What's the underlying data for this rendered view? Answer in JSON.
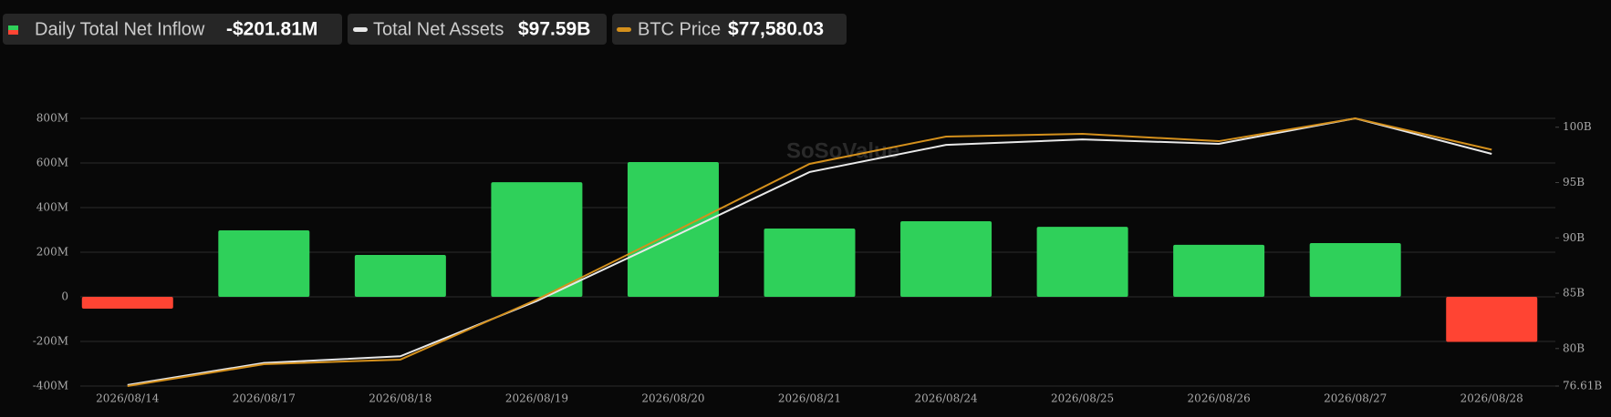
{
  "chart_data": {
    "type": "bar-line",
    "legend": [
      {
        "name": "Daily Total Net Inflow",
        "value_label": "-$201.81M"
      },
      {
        "name": "Total Net Assets",
        "value_label": "$97.59B"
      },
      {
        "name": "BTC Price",
        "value_label": "$77,580.03"
      }
    ],
    "watermark": "SoSoValue",
    "categories": [
      "2026/08/14",
      "2026/08/17",
      "2026/08/18",
      "2026/08/19",
      "2026/08/20",
      "2026/08/21",
      "2026/08/24",
      "2026/08/25",
      "2026/08/26",
      "2026/08/27",
      "2026/08/28"
    ],
    "series": [
      {
        "name": "Daily Total Net Inflow",
        "type": "bar",
        "positive_color": "#2fd05a",
        "negative_color": "#ff4433",
        "values": [
          -53,
          298,
          188,
          514,
          604,
          306,
          339,
          314,
          233,
          241,
          -201.81
        ]
      },
      {
        "name": "Total Net Assets",
        "type": "line",
        "axis": "y2",
        "color": "#e8e8e8",
        "values": [
          76.7,
          78.7,
          79.3,
          84.3,
          90.1,
          95.95,
          98.4,
          98.9,
          98.5,
          100.8,
          97.59
        ]
      },
      {
        "name": "BTC Price",
        "type": "line",
        "axis": "y3",
        "color": "#d4901c",
        "values": [
          55500,
          57540,
          57970,
          63580,
          69870,
          76250,
          78800,
          79050,
          78370,
          80500,
          77580.03
        ]
      }
    ],
    "ylim": [
      -400,
      800
    ],
    "yticks": [
      {
        "value": -400,
        "label": "-400M"
      },
      {
        "value": -200,
        "label": "-200M"
      },
      0,
      {
        "value": 200,
        "label": "200M"
      },
      {
        "value": 400,
        "label": "400M"
      },
      {
        "value": 600,
        "label": "600M"
      },
      {
        "value": 800,
        "label": "800M"
      }
    ],
    "y2lim": [
      76.61,
      100.8
    ],
    "y2ticks": [
      {
        "value": 76.61,
        "label": "76.61B"
      },
      {
        "value": 80,
        "label": "80B"
      },
      {
        "value": 85,
        "label": "85B"
      },
      {
        "value": 90,
        "label": "90B"
      },
      {
        "value": 95,
        "label": "95B"
      },
      {
        "value": 100,
        "label": "100B"
      }
    ],
    "y3lim": [
      55500,
      80500
    ],
    "grid": true
  }
}
